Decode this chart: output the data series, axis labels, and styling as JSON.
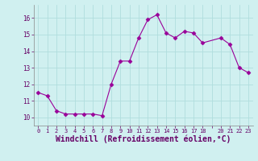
{
  "x": [
    0,
    1,
    2,
    3,
    4,
    5,
    6,
    7,
    8,
    9,
    10,
    11,
    12,
    13,
    14,
    15,
    16,
    17,
    18,
    20,
    21,
    22,
    23
  ],
  "y": [
    11.5,
    11.3,
    10.4,
    10.2,
    10.2,
    10.2,
    10.2,
    10.1,
    12.0,
    13.4,
    13.4,
    14.8,
    15.9,
    16.2,
    15.1,
    14.8,
    15.2,
    15.1,
    14.5,
    14.8,
    14.4,
    13.0,
    12.7
  ],
  "line_color": "#990099",
  "marker": "D",
  "marker_size": 2.5,
  "background_color": "#d0f0f0",
  "grid_color": "#b0dede",
  "xlabel": "Windchill (Refroidissement éolien,°C)",
  "xlabel_fontsize": 7,
  "xtick_labels": [
    "0",
    "1",
    "2",
    "3",
    "4",
    "5",
    "6",
    "7",
    "8",
    "9",
    "10",
    "11",
    "12",
    "13",
    "14",
    "15",
    "16",
    "17",
    "18",
    "",
    "20",
    "21",
    "22",
    "23"
  ],
  "xtick_values": [
    0,
    1,
    2,
    3,
    4,
    5,
    6,
    7,
    8,
    9,
    10,
    11,
    12,
    13,
    14,
    15,
    16,
    17,
    18,
    19,
    20,
    21,
    22,
    23
  ],
  "ylim": [
    9.5,
    16.8
  ],
  "yticks": [
    10,
    11,
    12,
    13,
    14,
    15,
    16
  ],
  "xlim": [
    -0.5,
    23.5
  ]
}
